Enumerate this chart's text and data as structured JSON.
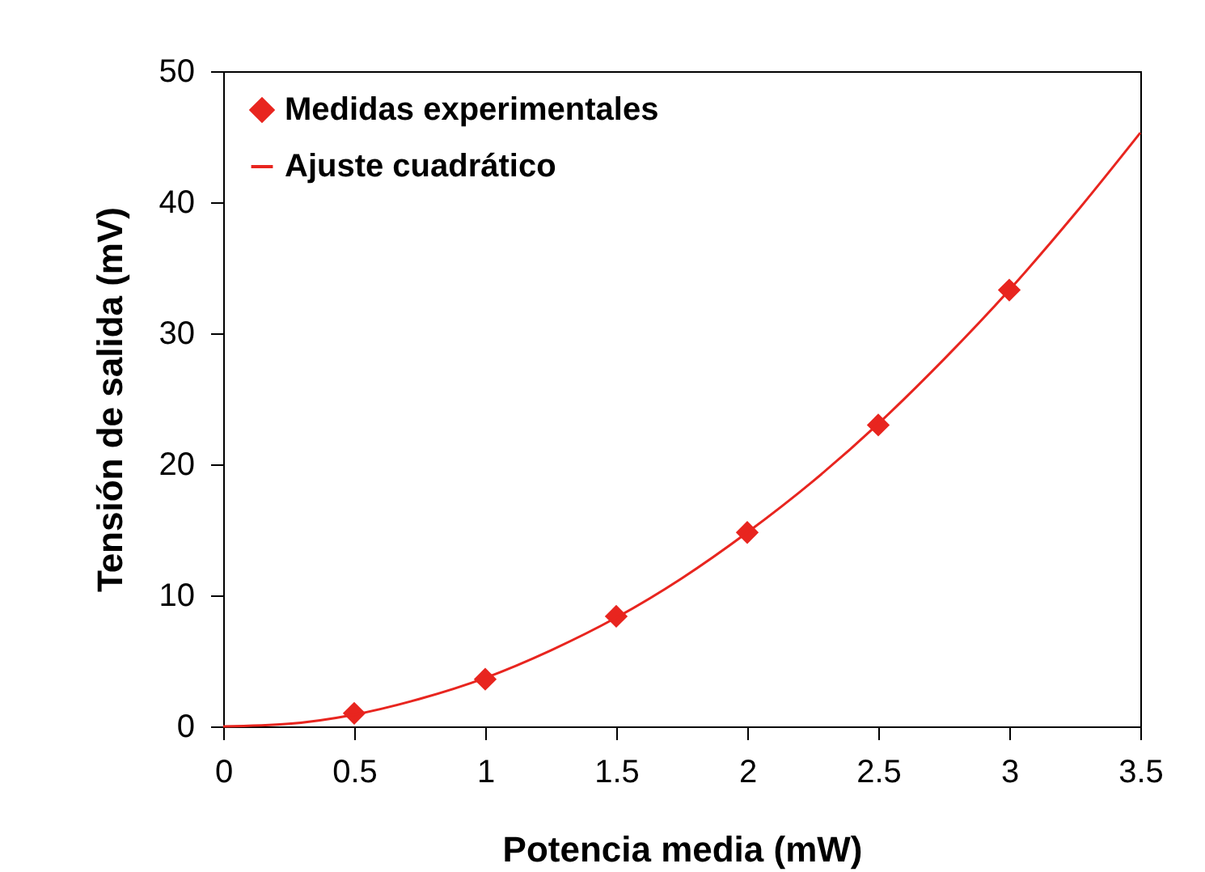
{
  "chart_data": {
    "type": "scatter",
    "xlabel": "Potencia media (mW)",
    "ylabel": "Tensión de salida (mV)",
    "xlim": [
      0,
      3.5
    ],
    "xticks": [
      0,
      0.5,
      1,
      1.5,
      2,
      2.5,
      3,
      3.5
    ],
    "ylim": [
      0,
      50
    ],
    "yticks": [
      0,
      10,
      20,
      30,
      40,
      50
    ],
    "grid": false,
    "legend": "top left",
    "series": [
      {
        "name": "Medidas experimentales",
        "marker": "diamond",
        "color": "#e8251f",
        "x": [
          0.5,
          1,
          1.5,
          2,
          2.5,
          3
        ],
        "values": [
          1.0,
          3.6,
          8.4,
          14.8,
          23.0,
          33.3
        ]
      },
      {
        "name": "Ajuste cuadrático",
        "type": "line",
        "color": "#e8251f",
        "x": [
          0,
          0.25,
          0.5,
          0.75,
          1,
          1.25,
          1.5,
          1.75,
          2,
          2.25,
          2.5,
          2.75,
          3,
          3.25,
          3.5
        ],
        "values": [
          0,
          0.2,
          0.9,
          2.1,
          3.7,
          5.8,
          8.3,
          11.3,
          14.8,
          18.7,
          23.1,
          28.0,
          33.3,
          39.1,
          45.3
        ]
      }
    ]
  }
}
